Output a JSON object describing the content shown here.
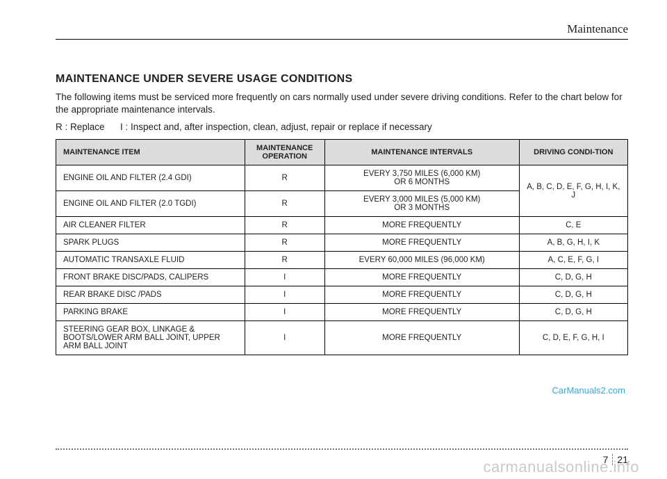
{
  "section_header": "Maintenance",
  "title": "MAINTENANCE UNDER SEVERE USAGE CONDITIONS",
  "intro": "The following items must be serviced more frequently on cars normally used under severe driving conditions. Refer to the chart below for the appropriate maintenance intervals.",
  "legend": "R : Replace      I : Inspect and, after inspection, clean, adjust, repair or replace if necessary",
  "table": {
    "headers": [
      "MAINTENANCE ITEM",
      "MAINTENANCE OPERATION",
      "MAINTENANCE INTERVALS",
      "DRIVING CONDI-TION"
    ],
    "rows": [
      {
        "item": "ENGINE OIL AND FILTER (2.4 GDI)",
        "op": "R",
        "interval": "EVERY 3,750 MILES (6,000 KM)\nOR 6 MONTHS",
        "cond": "A, B, C, D, E, F, G, H, I, K, J",
        "merge_cond": 2
      },
      {
        "item": "ENGINE OIL AND FILTER (2.0 TGDI)",
        "op": "R",
        "interval": "EVERY 3,000 MILES (5,000 KM)\nOR 3 MONTHS"
      },
      {
        "item": "AIR CLEANER FILTER",
        "op": "R",
        "interval": "MORE FREQUENTLY",
        "cond": "C, E"
      },
      {
        "item": "SPARK PLUGS",
        "op": "R",
        "interval": "MORE FREQUENTLY",
        "cond": "A, B, G, H, I, K"
      },
      {
        "item": "AUTOMATIC TRANSAXLE FLUID",
        "op": "R",
        "interval": "EVERY 60,000 MILES (96,000 KM)",
        "cond": "A, C, E, F, G, I"
      },
      {
        "item": "FRONT BRAKE DISC/PADS, CALIPERS",
        "op": "I",
        "interval": "MORE FREQUENTLY",
        "cond": "C, D, G, H"
      },
      {
        "item": "REAR BRAKE DISC /PADS",
        "op": "I",
        "interval": "MORE FREQUENTLY",
        "cond": "C, D, G, H"
      },
      {
        "item": "PARKING BRAKE",
        "op": "I",
        "interval": "MORE FREQUENTLY",
        "cond": "C, D, G, H"
      },
      {
        "item": "STEERING GEAR BOX, LINKAGE & BOOTS/LOWER ARM BALL JOINT, UPPER ARM BALL JOINT",
        "op": "I",
        "interval": "MORE FREQUENTLY",
        "cond": "C, D, E, F, G, H, I"
      }
    ]
  },
  "watermark_car": "CarManuals2.com",
  "footer": {
    "chapter": "7",
    "page": "21"
  },
  "watermark_online": "carmanualsonline.info"
}
